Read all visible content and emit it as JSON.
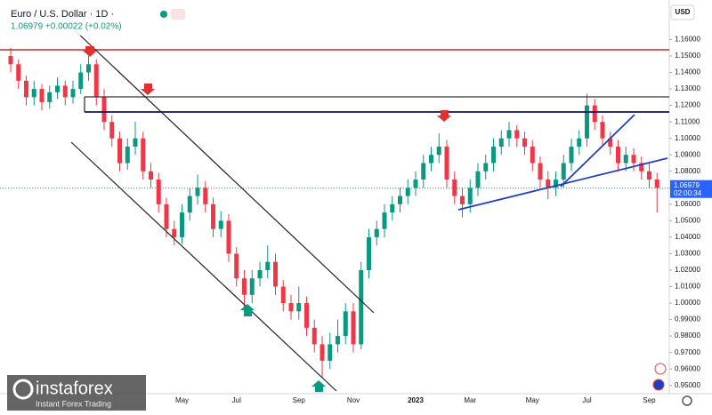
{
  "header": {
    "symbol": "Euro / U.S. Dollar · 1D ·",
    "quote": "1.06979 +0.00022 (+0.02%)",
    "currency": "USD",
    "countdown": "02:00:34",
    "brand": "instaforex",
    "tagline": "Instant Forex Trading"
  },
  "chart_data": {
    "type": "candlestick",
    "categories": [
      null,
      null,
      null,
      null,
      null,
      null,
      null,
      null,
      null,
      null,
      null,
      null,
      null,
      null,
      null,
      null,
      null,
      null,
      null,
      null,
      null,
      null,
      "May",
      null,
      null,
      null,
      null,
      null,
      null,
      "Jul",
      null,
      null,
      null,
      null,
      null,
      null,
      null,
      "Sep",
      null,
      null,
      null,
      null,
      null,
      null,
      "Nov",
      null,
      null,
      null,
      null,
      null,
      null,
      null,
      "2023",
      null,
      null,
      null,
      null,
      null,
      null,
      "Mar",
      null,
      null,
      null,
      null,
      null,
      null,
      null,
      "May",
      null,
      null,
      null,
      null,
      null,
      null,
      "Jul",
      null,
      null,
      null,
      null,
      null,
      null,
      null,
      "Sep",
      null
    ],
    "open": [
      1.15,
      1.145,
      1.135,
      1.125,
      1.13,
      1.122,
      1.128,
      1.132,
      1.125,
      1.13,
      1.14,
      1.145,
      1.125,
      1.11,
      1.1,
      1.085,
      1.095,
      1.1,
      1.08,
      1.075,
      1.06,
      1.045,
      1.04,
      1.055,
      1.065,
      1.07,
      1.06,
      1.045,
      1.05,
      1.03,
      1.015,
      1.005,
      1.015,
      1.02,
      1.025,
      1.01,
      1.0,
      0.995,
      1.0,
      0.985,
      0.975,
      0.965,
      0.975,
      0.98,
      0.995,
      0.975,
      1.02,
      1.04,
      1.045,
      1.055,
      1.06,
      1.065,
      1.07,
      1.075,
      1.085,
      1.09,
      1.095,
      1.075,
      1.065,
      1.06,
      1.07,
      1.08,
      1.085,
      1.095,
      1.1,
      1.105,
      1.1,
      1.095,
      1.085,
      1.075,
      1.07,
      1.075,
      1.085,
      1.095,
      1.1,
      1.12,
      1.11,
      1.1,
      1.095,
      1.085,
      1.09,
      1.085,
      1.08,
      1.075
    ],
    "high": [
      1.155,
      1.148,
      1.138,
      1.135,
      1.133,
      1.132,
      1.137,
      1.135,
      1.135,
      1.145,
      1.15,
      1.148,
      1.13,
      1.114,
      1.104,
      1.1,
      1.11,
      1.104,
      1.085,
      1.079,
      1.064,
      1.05,
      1.06,
      1.07,
      1.078,
      1.074,
      1.064,
      1.056,
      1.054,
      1.034,
      1.02,
      1.02,
      1.025,
      1.035,
      1.03,
      1.014,
      1.005,
      1.01,
      1.004,
      0.99,
      0.98,
      0.982,
      0.99,
      1.0,
      1.0,
      1.025,
      1.045,
      1.05,
      1.06,
      1.065,
      1.07,
      1.075,
      1.08,
      1.09,
      1.095,
      1.103,
      1.099,
      1.08,
      1.07,
      1.075,
      1.085,
      1.09,
      1.1,
      1.105,
      1.11,
      1.108,
      1.104,
      1.099,
      1.089,
      1.08,
      1.08,
      1.09,
      1.1,
      1.105,
      1.127,
      1.124,
      1.114,
      1.104,
      1.099,
      1.095,
      1.094,
      1.089,
      1.085,
      1.079
    ],
    "low": [
      1.14,
      1.13,
      1.12,
      1.12,
      1.117,
      1.118,
      1.124,
      1.12,
      1.121,
      1.127,
      1.135,
      1.12,
      1.105,
      1.095,
      1.08,
      1.081,
      1.09,
      1.075,
      1.07,
      1.055,
      1.04,
      1.035,
      1.036,
      1.05,
      1.06,
      1.055,
      1.04,
      1.04,
      1.025,
      1.01,
      0.995,
      1.0,
      1.01,
      1.015,
      1.005,
      0.995,
      0.99,
      0.99,
      0.98,
      0.97,
      0.955,
      0.96,
      0.97,
      0.975,
      0.97,
      0.972,
      1.015,
      1.035,
      1.04,
      1.05,
      1.055,
      1.06,
      1.065,
      1.07,
      1.08,
      1.085,
      1.07,
      1.06,
      1.052,
      1.055,
      1.065,
      1.075,
      1.08,
      1.09,
      1.095,
      1.095,
      1.09,
      1.08,
      1.07,
      1.063,
      1.065,
      1.07,
      1.08,
      1.09,
      1.095,
      1.105,
      1.095,
      1.09,
      1.08,
      1.08,
      1.08,
      1.075,
      1.07,
      1.055
    ],
    "close": [
      1.145,
      1.135,
      1.125,
      1.13,
      1.122,
      1.128,
      1.132,
      1.125,
      1.13,
      1.14,
      1.145,
      1.125,
      1.11,
      1.1,
      1.085,
      1.095,
      1.1,
      1.08,
      1.075,
      1.06,
      1.045,
      1.04,
      1.055,
      1.065,
      1.07,
      1.06,
      1.045,
      1.05,
      1.03,
      1.015,
      1.005,
      1.015,
      1.02,
      1.025,
      1.01,
      1.0,
      0.995,
      1.0,
      0.985,
      0.975,
      0.965,
      0.975,
      0.98,
      0.995,
      0.975,
      1.02,
      1.04,
      1.045,
      1.055,
      1.06,
      1.065,
      1.07,
      1.075,
      1.085,
      1.09,
      1.095,
      1.075,
      1.065,
      1.06,
      1.07,
      1.08,
      1.085,
      1.095,
      1.1,
      1.105,
      1.1,
      1.095,
      1.085,
      1.075,
      1.07,
      1.075,
      1.085,
      1.095,
      1.1,
      1.12,
      1.11,
      1.1,
      1.095,
      1.085,
      1.09,
      1.085,
      1.08,
      1.075,
      1.07
    ],
    "up_color": "#089981",
    "down_color": "#f23645",
    "last_price": 1.06979,
    "ylim": [
      0.945,
      1.184
    ],
    "yticks": [
      {
        "value": 0.95,
        "label": "0.95000"
      },
      {
        "value": 0.96,
        "label": "0.96000"
      },
      {
        "value": 0.97,
        "label": "0.97000"
      },
      {
        "value": 0.98,
        "label": "0.98000"
      },
      {
        "value": 0.99,
        "label": "0.99000"
      },
      {
        "value": 1.0,
        "label": "1.00000"
      },
      {
        "value": 1.01,
        "label": "1.01000"
      },
      {
        "value": 1.02,
        "label": "1.02000"
      },
      {
        "value": 1.03,
        "label": "1.03000"
      },
      {
        "value": 1.04,
        "label": "1.04000"
      },
      {
        "value": 1.05,
        "label": "1.05000"
      },
      {
        "value": 1.06,
        "label": "1.06000"
      },
      {
        "value": 1.07,
        "label": "1.07000"
      },
      {
        "value": 1.08,
        "label": "1.08000"
      },
      {
        "value": 1.09,
        "label": "1.09000"
      },
      {
        "value": 1.1,
        "label": "1.10000"
      },
      {
        "value": 1.11,
        "label": "1.11000"
      },
      {
        "value": 1.12,
        "label": "1.12000"
      },
      {
        "value": 1.13,
        "label": "1.13000"
      },
      {
        "value": 1.14,
        "label": "1.14000"
      },
      {
        "value": 1.15,
        "label": "1.15000"
      },
      {
        "value": 1.16,
        "label": "1.16000"
      }
    ],
    "grid": false
  }
}
